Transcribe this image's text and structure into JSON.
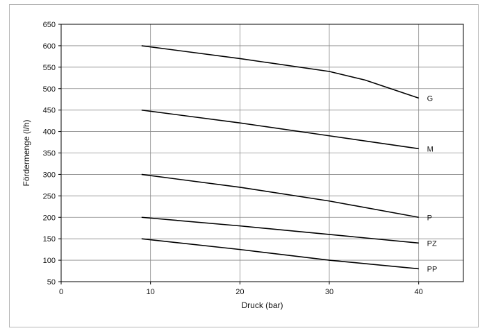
{
  "chart_data": {
    "type": "line",
    "xlabel": "Druck (bar)",
    "ylabel": "Fördermenge (l/h)",
    "xlim": [
      0,
      45
    ],
    "ylim": [
      50,
      650
    ],
    "xticks": [
      0,
      10,
      20,
      30,
      40
    ],
    "yticks": [
      50,
      100,
      150,
      200,
      250,
      300,
      350,
      400,
      450,
      500,
      550,
      600,
      650
    ],
    "grid": true,
    "legend": "series labels at line ends (right)",
    "line_color": "#000000",
    "series": [
      {
        "name": "G",
        "x": [
          9,
          20,
          30,
          34,
          40
        ],
        "y": [
          600,
          570,
          540,
          520,
          478
        ]
      },
      {
        "name": "M",
        "x": [
          9,
          20,
          30,
          40
        ],
        "y": [
          450,
          420,
          390,
          360
        ]
      },
      {
        "name": "P",
        "x": [
          9,
          20,
          30,
          40
        ],
        "y": [
          300,
          270,
          238,
          200
        ]
      },
      {
        "name": "PZ",
        "x": [
          9,
          20,
          30,
          40
        ],
        "y": [
          200,
          180,
          160,
          140
        ]
      },
      {
        "name": "PP",
        "x": [
          9,
          20,
          30,
          40
        ],
        "y": [
          150,
          125,
          100,
          80
        ]
      }
    ]
  }
}
